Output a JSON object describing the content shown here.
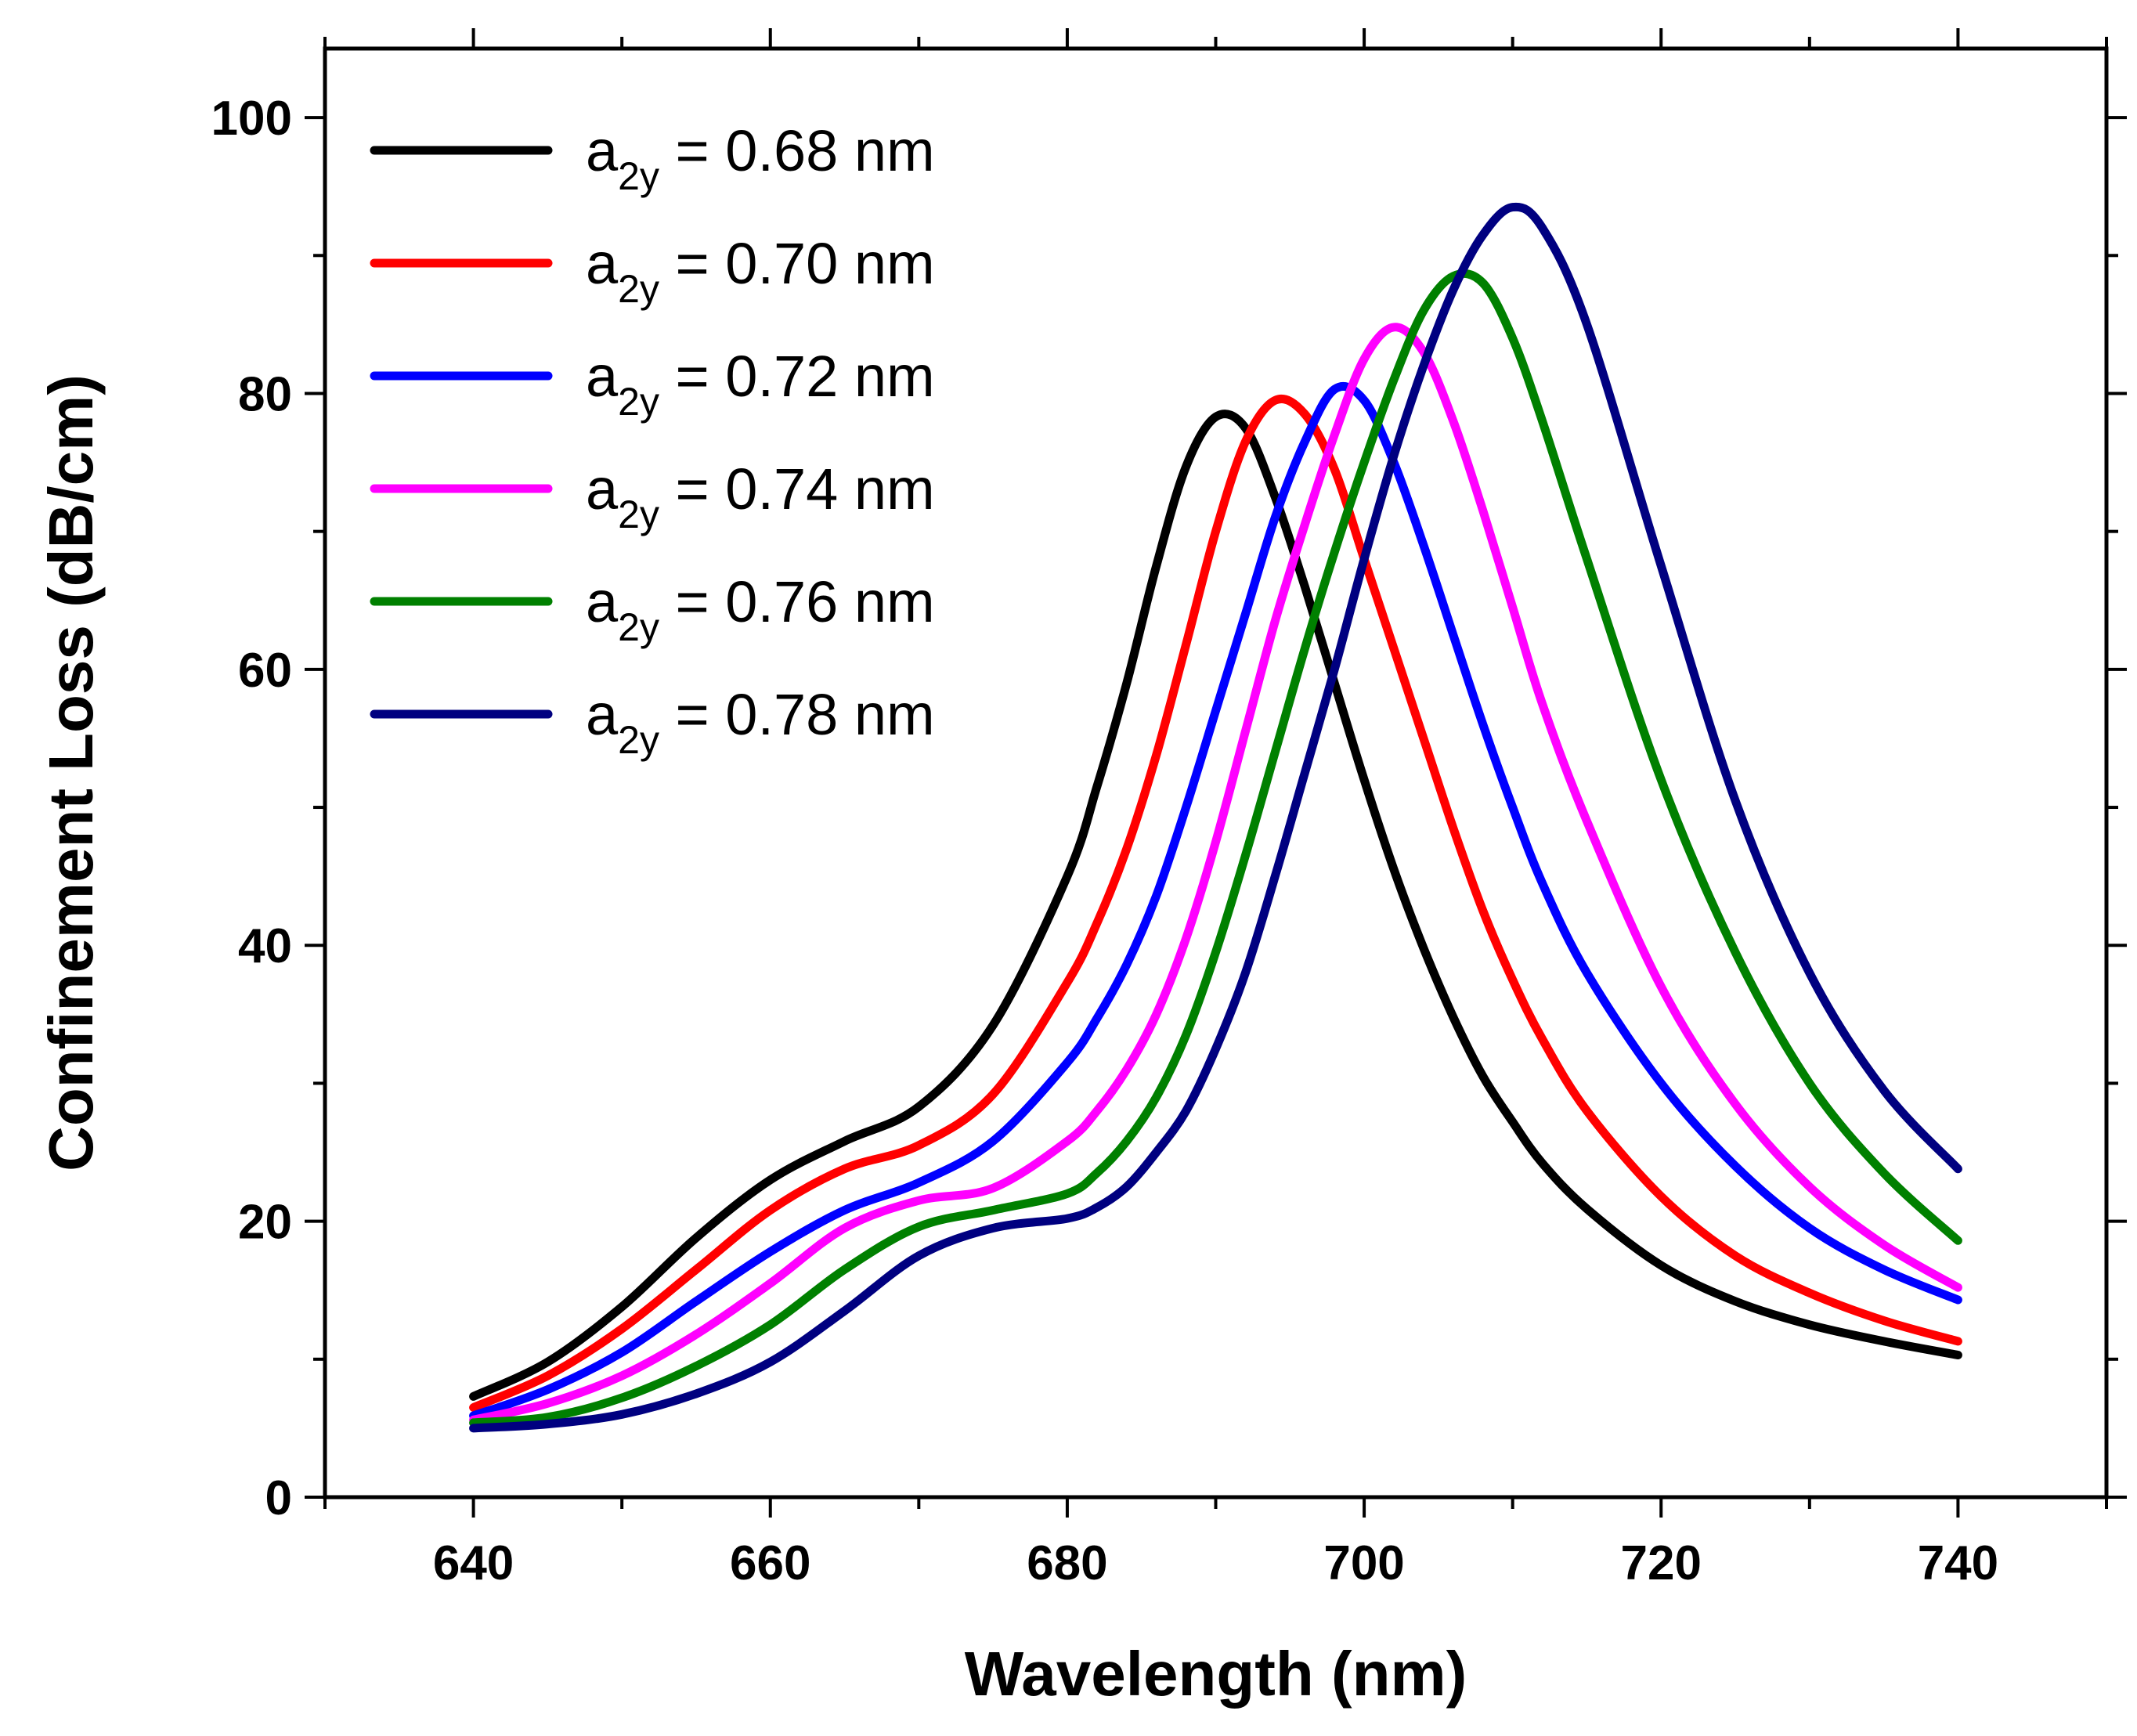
{
  "chart_data": {
    "type": "line",
    "title": "",
    "xlabel": "Wavelength (nm)",
    "ylabel": "Confinement Loss (dB/cm)",
    "xlim": [
      630,
      750
    ],
    "ylim": [
      0,
      105
    ],
    "xticks": [
      640,
      660,
      680,
      700,
      720,
      740
    ],
    "yticks": [
      0,
      20,
      40,
      60,
      80,
      100
    ],
    "grid": false,
    "legend_position": "top-left",
    "x": [
      640,
      645,
      650,
      655,
      660,
      665,
      670,
      675,
      680,
      682,
      684,
      686,
      688,
      690,
      692,
      694,
      696,
      698,
      700,
      702,
      704,
      706,
      708,
      710,
      712,
      715,
      720,
      725,
      730,
      735,
      740
    ],
    "series": [
      {
        "name": "a",
        "sub": "2y",
        "suffix": " = 0.68 nm",
        "color": "#000000",
        "values": [
          7.3,
          9.8,
          13.8,
          18.8,
          23.0,
          25.8,
          28.3,
          34.2,
          45.0,
          51.5,
          59.0,
          67.5,
          74.7,
          78.3,
          77.5,
          72.5,
          66.0,
          59.0,
          52.0,
          45.5,
          39.8,
          34.8,
          30.5,
          27.2,
          24.2,
          20.9,
          16.8,
          14.2,
          12.5,
          11.3,
          10.3
        ]
      },
      {
        "name": "a",
        "sub": "2y",
        "suffix": " = 0.70 nm",
        "color": "#ff0000",
        "values": [
          6.5,
          8.8,
          12.2,
          16.5,
          20.8,
          23.8,
          25.5,
          29.2,
          37.3,
          41.6,
          47.0,
          53.8,
          61.8,
          70.0,
          76.5,
          79.5,
          78.5,
          74.5,
          68.0,
          61.5,
          55.0,
          48.5,
          42.5,
          37.5,
          33.2,
          28.0,
          21.8,
          17.5,
          14.8,
          12.8,
          11.3
        ]
      },
      {
        "name": "a",
        "sub": "2y",
        "suffix": " = 0.72 nm",
        "color": "#0000ff",
        "values": [
          5.9,
          7.8,
          10.5,
          14.2,
          17.8,
          20.8,
          22.8,
          25.8,
          31.5,
          34.7,
          38.6,
          43.6,
          50.0,
          57.0,
          64.0,
          71.0,
          76.5,
          80.3,
          79.5,
          75.0,
          69.0,
          62.5,
          56.0,
          50.0,
          44.5,
          38.0,
          30.0,
          24.0,
          19.5,
          16.5,
          14.3
        ]
      },
      {
        "name": "a",
        "sub": "2y",
        "suffix": " = 0.74 nm",
        "color": "#ff00ff",
        "values": [
          5.6,
          6.8,
          8.8,
          11.8,
          15.5,
          19.5,
          21.5,
          22.4,
          25.8,
          28.0,
          31.0,
          35.0,
          40.5,
          47.5,
          55.5,
          63.5,
          70.5,
          77.0,
          82.5,
          84.8,
          83.0,
          78.0,
          71.5,
          64.5,
          57.5,
          49.0,
          37.0,
          28.5,
          22.5,
          18.3,
          15.2
        ]
      },
      {
        "name": "a",
        "sub": "2y",
        "suffix": " = 0.76 nm",
        "color": "#008000",
        "values": [
          5.4,
          5.8,
          7.2,
          9.5,
          12.5,
          16.5,
          19.6,
          20.8,
          22.0,
          23.5,
          25.8,
          29.0,
          33.5,
          39.5,
          46.5,
          54.0,
          61.5,
          68.5,
          75.0,
          81.0,
          86.0,
          88.5,
          88.0,
          84.0,
          78.0,
          68.0,
          52.0,
          39.5,
          30.0,
          23.5,
          18.6
        ]
      },
      {
        "name": "a",
        "sub": "2y",
        "suffix": " = 0.78 nm",
        "color": "#000080",
        "values": [
          5.0,
          5.3,
          6.0,
          7.5,
          9.8,
          13.5,
          17.5,
          19.5,
          20.2,
          21.0,
          22.5,
          25.0,
          28.0,
          32.5,
          38.0,
          45.0,
          52.5,
          60.0,
          68.0,
          75.5,
          82.0,
          87.5,
          91.5,
          93.5,
          92.0,
          85.0,
          67.5,
          50.5,
          38.0,
          29.5,
          23.8
        ]
      }
    ]
  }
}
